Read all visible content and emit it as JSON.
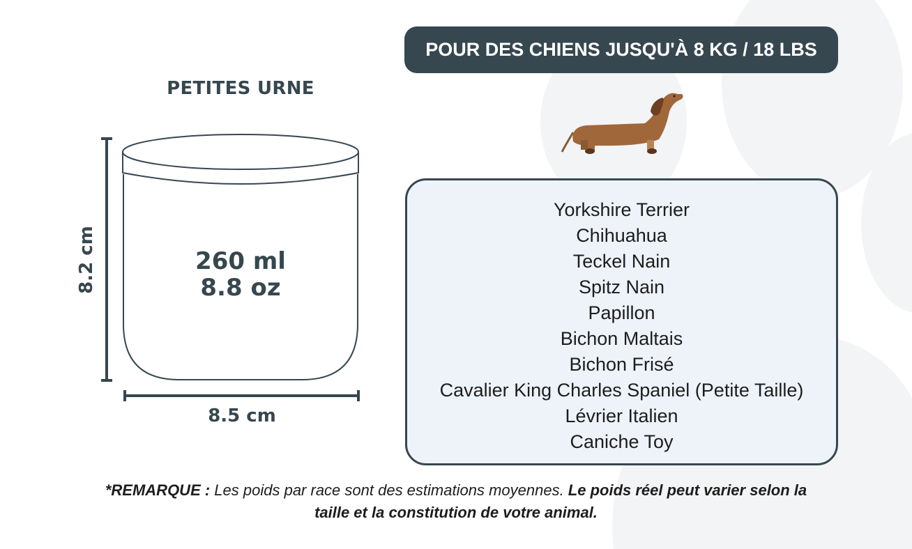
{
  "title": "PETITES URNE",
  "urn": {
    "volume_ml": "260 ml",
    "volume_oz": "8.8 oz",
    "height": "8.2 cm",
    "width": "8.5 cm"
  },
  "weight_banner": "POUR DES CHIENS JUSQU'À 8 KG / 18 LBS",
  "illustration": "dachshund-icon",
  "breeds": [
    "Yorkshire Terrier",
    "Chihuahua",
    "Teckel Nain",
    "Spitz Nain",
    "Papillon",
    "Bichon Maltais",
    "Bichon Frisé",
    "Cavalier King Charles Spaniel (Petite Taille)",
    "Lévrier Italien",
    "Caniche Toy"
  ],
  "note": {
    "label": "*REMARQUE :",
    "text": " Les poids par race sont des estimations moyennes. ",
    "emphasis": "Le poids réel peut varier selon la taille et la constitution de votre animal."
  },
  "colors": {
    "dark": "#36474f",
    "box_bg": "#eef3fa",
    "paw_bg": "#f3f4f6",
    "dog": "#a0673a"
  }
}
